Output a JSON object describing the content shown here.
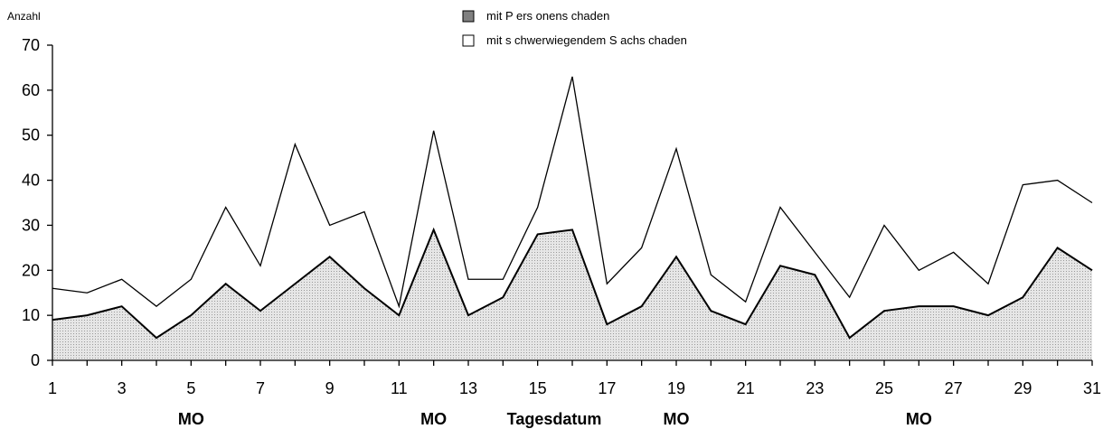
{
  "chart_data": {
    "type": "area",
    "ylabel": "Anzahl",
    "xlabel": "Tagesdatum",
    "ylim": [
      0,
      70
    ],
    "xlim": [
      1,
      31
    ],
    "yticks": [
      0,
      10,
      20,
      30,
      40,
      50,
      60,
      70
    ],
    "xtick_labels": [
      1,
      3,
      5,
      7,
      9,
      11,
      13,
      15,
      17,
      19,
      21,
      23,
      25,
      27,
      29,
      31
    ],
    "x": [
      1,
      2,
      3,
      4,
      5,
      6,
      7,
      8,
      9,
      10,
      11,
      12,
      13,
      14,
      15,
      16,
      17,
      18,
      19,
      20,
      21,
      22,
      23,
      24,
      25,
      26,
      27,
      28,
      29,
      30,
      31
    ],
    "series": [
      {
        "name": "mit P ers onens chaden",
        "values": [
          9,
          10,
          12,
          5,
          10,
          17,
          11,
          17,
          23,
          16,
          10,
          29,
          10,
          14,
          28,
          29,
          8,
          12,
          23,
          11,
          8,
          21,
          19,
          5,
          11,
          12,
          12,
          10,
          14,
          25,
          20
        ],
        "fill": "#d0d0d0"
      },
      {
        "name": "mit s chwerwiegendem S achs chaden",
        "values": [
          16,
          15,
          18,
          12,
          18,
          34,
          21,
          48,
          30,
          33,
          12,
          51,
          18,
          18,
          34,
          63,
          17,
          25,
          47,
          19,
          13,
          34,
          24,
          14,
          30,
          20,
          24,
          17,
          39,
          40,
          35
        ],
        "fill": "#ffffff"
      }
    ],
    "annotations": [
      {
        "text": "MO",
        "x": 5
      },
      {
        "text": "MO",
        "x": 12
      },
      {
        "text": "MO",
        "x": 19
      },
      {
        "text": "MO",
        "x": 26
      }
    ],
    "legend_position": "top-center",
    "grid": false
  }
}
